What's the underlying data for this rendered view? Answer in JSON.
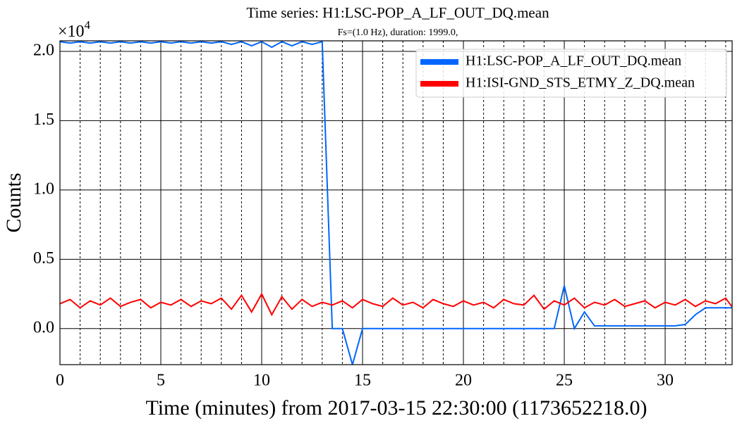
{
  "chart_data": {
    "type": "line",
    "title": "Time series: H1:LSC-POP_A_LF_OUT_DQ.mean",
    "subtitle": "Fs=(1.0 Hz), duration: 1999.0,",
    "y_offset_label": {
      "base": "×10",
      "exponent": "4"
    },
    "xlabel": "Time (minutes) from 2017-03-15 22:30:00 (1173652218.0)",
    "ylabel": "Counts",
    "x": [
      0,
      0.5,
      1,
      1.5,
      2,
      2.5,
      3,
      3.5,
      4,
      4.5,
      5,
      5.5,
      6,
      6.5,
      7,
      7.5,
      8,
      8.5,
      9,
      9.5,
      10,
      10.5,
      11,
      11.5,
      12,
      12.5,
      13,
      13.5,
      14,
      14.5,
      15,
      15.5,
      16,
      16.5,
      17,
      17.5,
      18,
      18.5,
      19,
      19.5,
      20,
      20.5,
      21,
      21.5,
      22,
      22.5,
      23,
      23.5,
      24,
      24.5,
      25,
      25.5,
      26,
      26.5,
      27,
      27.5,
      28,
      28.5,
      29,
      29.5,
      30,
      30.5,
      31,
      31.5,
      32,
      32.5,
      33,
      33.3
    ],
    "series": [
      {
        "name": "H1:LSC-POP_A_LF_OUT_DQ.mean",
        "color": "#0066ff",
        "values": [
          2.07,
          2.06,
          2.07,
          2.06,
          2.07,
          2.06,
          2.07,
          2.06,
          2.07,
          2.06,
          2.07,
          2.06,
          2.07,
          2.06,
          2.07,
          2.06,
          2.07,
          2.05,
          2.07,
          2.04,
          2.07,
          2.03,
          2.07,
          2.04,
          2.07,
          2.05,
          2.07,
          0.0,
          0.0,
          -0.26,
          0.0,
          0.0,
          0.0,
          0.0,
          0.0,
          0.0,
          0.0,
          0.0,
          0.0,
          0.0,
          0.0,
          0.0,
          0.0,
          0.0,
          0.0,
          0.0,
          0.0,
          0.0,
          0.0,
          0.0,
          0.31,
          0.0,
          0.12,
          0.02,
          0.02,
          0.02,
          0.02,
          0.02,
          0.02,
          0.02,
          0.02,
          0.02,
          0.03,
          0.1,
          0.15,
          0.15,
          0.15,
          0.15
        ]
      },
      {
        "name": "H1:ISI-GND_STS_ETMY_Z_DQ.mean",
        "color": "#ff0000",
        "values": [
          0.18,
          0.21,
          0.15,
          0.2,
          0.17,
          0.22,
          0.16,
          0.19,
          0.21,
          0.15,
          0.19,
          0.17,
          0.21,
          0.16,
          0.2,
          0.18,
          0.22,
          0.14,
          0.24,
          0.12,
          0.25,
          0.1,
          0.23,
          0.14,
          0.21,
          0.16,
          0.19,
          0.17,
          0.2,
          0.15,
          0.21,
          0.18,
          0.16,
          0.22,
          0.17,
          0.19,
          0.15,
          0.21,
          0.18,
          0.16,
          0.2,
          0.17,
          0.19,
          0.15,
          0.21,
          0.18,
          0.17,
          0.24,
          0.14,
          0.2,
          0.17,
          0.22,
          0.15,
          0.19,
          0.17,
          0.21,
          0.16,
          0.18,
          0.2,
          0.15,
          0.19,
          0.17,
          0.21,
          0.16,
          0.2,
          0.18,
          0.22,
          0.16
        ]
      }
    ],
    "xlim": [
      0,
      33.32
    ],
    "xticks": [
      0,
      5,
      10,
      15,
      20,
      25,
      30
    ],
    "xminorgrid": [
      1,
      2,
      3,
      4,
      6,
      7,
      8,
      9,
      11,
      12,
      13,
      14,
      16,
      17,
      18,
      19,
      21,
      22,
      23,
      24,
      26,
      27,
      28,
      29,
      31,
      32,
      33
    ],
    "ylim": [
      -0.26,
      2.076
    ],
    "yticks": [
      {
        "value": 0,
        "label": "0.0"
      },
      0.5,
      {
        "value": 1,
        "label": "1.0"
      },
      1.5,
      {
        "value": 2,
        "label": "2.0"
      }
    ],
    "grid": true,
    "legend": "upper right"
  }
}
